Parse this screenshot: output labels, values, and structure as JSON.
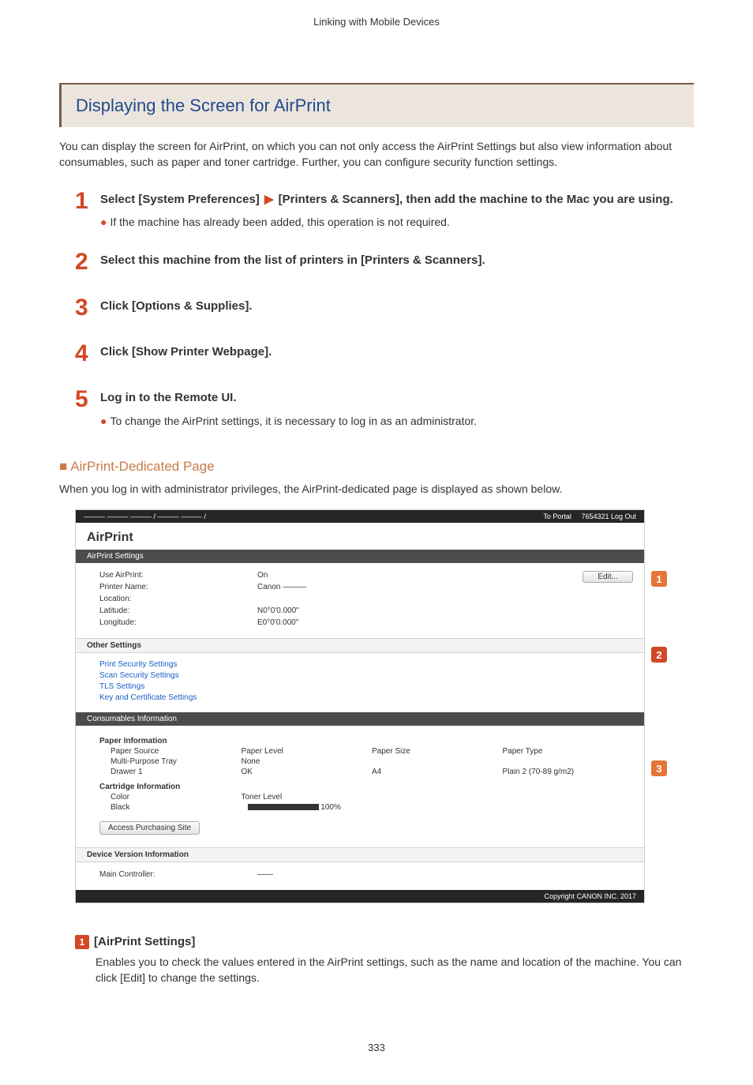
{
  "header_caption": "Linking with Mobile Devices",
  "section_title": "Displaying the Screen for AirPrint",
  "intro": "You can display the screen for AirPrint, on which you can not only access the AirPrint Settings but also view information about consumables, such as paper and toner cartridge. Further, you can configure security function settings.",
  "steps": {
    "s1": {
      "num": "1",
      "title_a": "Select [System Preferences] ",
      "title_b": " [Printers & Scanners], then add the machine to the Mac you are using.",
      "note": "If the machine has already been added, this operation is not required."
    },
    "s2": {
      "num": "2",
      "title": "Select this machine from the list of printers in [Printers & Scanners]."
    },
    "s3": {
      "num": "3",
      "title": "Click [Options & Supplies]."
    },
    "s4": {
      "num": "4",
      "title": "Click [Show Printer Webpage]."
    },
    "s5": {
      "num": "5",
      "title": "Log in to the Remote UI.",
      "note": "To change the AirPrint settings, it is necessary to log in as an administrator."
    }
  },
  "subhead": "AirPrint-Dedicated Page",
  "subintro": "When you log in with administrator privileges, the AirPrint-dedicated page is displayed as shown below.",
  "screenshot": {
    "topbar_left": "———   ——— ——— / ——— ——— /",
    "to_portal": "To Portal",
    "login": "7654321  Log Out",
    "h1": "AirPrint",
    "bar1": "AirPrint Settings",
    "edit": "Edit...",
    "rows": {
      "r1k": "Use AirPrint:",
      "r1v": "On",
      "r2k": "Printer Name:",
      "r2v": "Canon ———",
      "r3k": "Location:",
      "r3v": "",
      "r4k": "Latitude:",
      "r4v": "N0°0'0.000\"",
      "r5k": "Longitude:",
      "r5v": "E0°0'0.000\""
    },
    "other_settings": "Other Settings",
    "links": {
      "l1": "Print Security Settings",
      "l2": "Scan Security Settings",
      "l3": "TLS Settings",
      "l4": "Key and Certificate Settings"
    },
    "bar2": "Consumables Information",
    "paper_info": "Paper Information",
    "ph": {
      "a": "Paper Source",
      "b": "Paper Level",
      "c": "Paper Size",
      "d": "Paper Type"
    },
    "pr1": {
      "a": "Multi-Purpose Tray",
      "b": "None",
      "c": "",
      "d": ""
    },
    "pr2": {
      "a": "Drawer 1",
      "b": "OK",
      "c": "A4",
      "d": "Plain 2 (70-89 g/m2)"
    },
    "cart_info": "Cartridge Information",
    "ch": {
      "a": "Color",
      "b": "Toner Level"
    },
    "cr": {
      "a": "Black",
      "b": "100%"
    },
    "purchase": "Access Purchasing Site",
    "bar3": "Device Version Information",
    "ver": {
      "k": "Main Controller:",
      "v": "——"
    },
    "footer": "Copyright CANON INC. 2017"
  },
  "callouts": {
    "c1": "1",
    "c2": "2",
    "c3": "3"
  },
  "desc": {
    "num": "1",
    "title": "[AirPrint Settings]",
    "body": "Enables you to check the values entered in the AirPrint settings, such as the name and location of the machine. You can click [Edit] to change the settings."
  },
  "page_number": "333"
}
